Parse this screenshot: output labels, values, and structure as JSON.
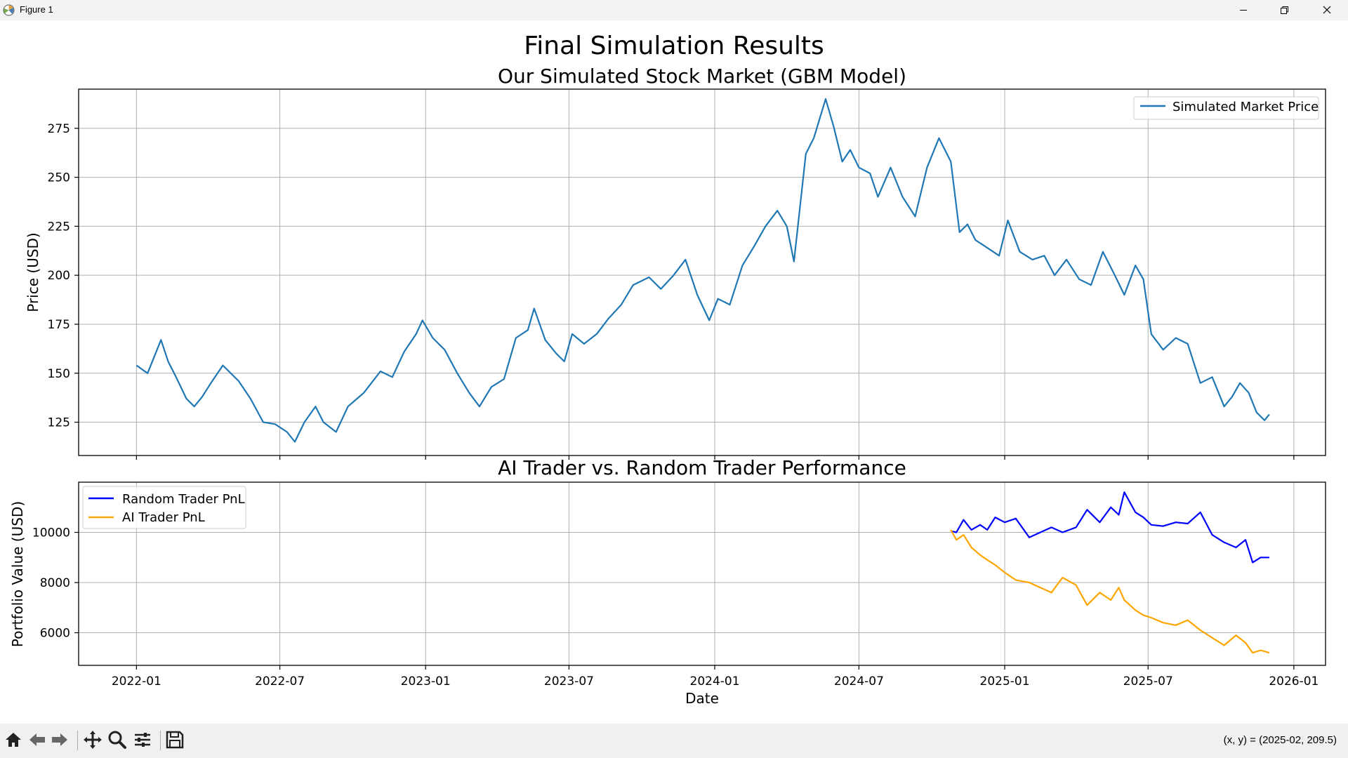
{
  "window": {
    "title": "Figure 1"
  },
  "figure": {
    "suptitle": "Final Simulation Results"
  },
  "toolbar": {
    "tools": [
      "home-icon",
      "back-icon",
      "forward-icon",
      "pan-icon",
      "zoom-icon",
      "configure-subplots-icon",
      "save-icon"
    ],
    "coord_readout": "(x, y) = (2025-02, 209.5)"
  },
  "colors": {
    "price": "#1f77b4",
    "random": "#0000ff",
    "ai": "#ffa500",
    "grid": "#b0b0b0"
  },
  "chart_data": [
    {
      "type": "line",
      "title": "Our Simulated Stock Market (GBM Model)",
      "xlabel": "",
      "ylabel": "Price (USD)",
      "xlim": [
        "2021-10-20",
        "2026-02-10"
      ],
      "ylim": [
        108,
        295
      ],
      "yticks": [
        125,
        150,
        175,
        200,
        225,
        250,
        275
      ],
      "xticks": [
        "2022-01",
        "2022-07",
        "2023-01",
        "2023-07",
        "2024-01",
        "2024-07",
        "2025-01",
        "2025-07",
        "2026-01"
      ],
      "xticklabels_visible": false,
      "grid": true,
      "legend_position": "upper right",
      "series": [
        {
          "name": "Simulated Market Price",
          "color": "#1f77b4",
          "x": [
            "2022-01-01",
            "2022-01-15",
            "2022-02-01",
            "2022-02-10",
            "2022-02-20",
            "2022-03-05",
            "2022-03-15",
            "2022-03-25",
            "2022-04-05",
            "2022-04-20",
            "2022-05-10",
            "2022-05-25",
            "2022-06-10",
            "2022-06-25",
            "2022-07-10",
            "2022-07-20",
            "2022-08-01",
            "2022-08-15",
            "2022-08-25",
            "2022-09-10",
            "2022-09-25",
            "2022-10-15",
            "2022-11-05",
            "2022-11-20",
            "2022-12-05",
            "2022-12-20",
            "2022-12-28",
            "2023-01-10",
            "2023-01-25",
            "2023-02-10",
            "2023-02-25",
            "2023-03-10",
            "2023-03-25",
            "2023-04-10",
            "2023-04-25",
            "2023-05-10",
            "2023-05-18",
            "2023-06-01",
            "2023-06-15",
            "2023-06-25",
            "2023-07-05",
            "2023-07-20",
            "2023-08-05",
            "2023-08-20",
            "2023-09-05",
            "2023-09-20",
            "2023-10-10",
            "2023-10-25",
            "2023-11-10",
            "2023-11-25",
            "2023-12-10",
            "2023-12-25",
            "2024-01-05",
            "2024-01-20",
            "2024-02-05",
            "2024-02-20",
            "2024-03-05",
            "2024-03-20",
            "2024-04-01",
            "2024-04-10",
            "2024-04-25",
            "2024-05-05",
            "2024-05-20",
            "2024-05-30",
            "2024-06-10",
            "2024-06-20",
            "2024-07-01",
            "2024-07-15",
            "2024-07-25",
            "2024-08-10",
            "2024-08-25",
            "2024-09-10",
            "2024-09-25",
            "2024-10-10",
            "2024-10-25",
            "2024-11-05",
            "2024-11-15",
            "2024-11-25",
            "2024-12-10",
            "2024-12-25",
            "2025-01-05",
            "2025-01-20",
            "2025-02-05",
            "2025-02-20",
            "2025-03-05",
            "2025-03-20",
            "2025-04-05",
            "2025-04-20",
            "2025-05-05",
            "2025-05-20",
            "2025-06-01",
            "2025-06-15",
            "2025-06-25",
            "2025-07-05",
            "2025-07-20",
            "2025-08-05",
            "2025-08-20",
            "2025-09-05",
            "2025-09-20",
            "2025-10-05",
            "2025-10-15",
            "2025-10-25",
            "2025-11-05",
            "2025-11-15",
            "2025-11-25",
            "2025-12-01"
          ],
          "values": [
            154,
            150,
            167,
            156,
            148,
            137,
            133,
            138,
            145,
            154,
            146,
            137,
            125,
            124,
            120,
            115,
            125,
            133,
            125,
            120,
            133,
            140,
            151,
            148,
            161,
            170,
            177,
            168,
            162,
            150,
            140,
            133,
            143,
            147,
            168,
            172,
            183,
            167,
            160,
            156,
            170,
            165,
            170,
            178,
            185,
            195,
            199,
            193,
            200,
            208,
            190,
            177,
            188,
            185,
            205,
            215,
            225,
            233,
            225,
            207,
            262,
            270,
            290,
            276,
            258,
            264,
            255,
            252,
            240,
            255,
            240,
            230,
            255,
            270,
            258,
            222,
            226,
            218,
            214,
            210,
            228,
            212,
            208,
            210,
            200,
            208,
            198,
            195,
            212,
            200,
            190,
            205,
            198,
            170,
            162,
            168,
            165,
            145,
            148,
            133,
            138,
            145,
            140,
            130,
            126,
            129
          ]
        }
      ]
    },
    {
      "type": "line",
      "title": "AI Trader vs. Random Trader Performance",
      "xlabel": "Date",
      "ylabel": "Portfolio Value (USD)",
      "xlim": [
        "2021-10-20",
        "2026-02-10"
      ],
      "ylim": [
        4700,
        12000
      ],
      "yticks": [
        6000,
        8000,
        10000
      ],
      "xticks": [
        "2022-01",
        "2022-07",
        "2023-01",
        "2023-07",
        "2024-01",
        "2024-07",
        "2025-01",
        "2025-07",
        "2026-01"
      ],
      "grid": true,
      "legend_position": "upper left",
      "series": [
        {
          "name": "Random Trader PnL",
          "color": "#0000ff",
          "x": [
            "2024-10-25",
            "2024-11-01",
            "2024-11-10",
            "2024-11-20",
            "2024-12-01",
            "2024-12-10",
            "2024-12-20",
            "2025-01-01",
            "2025-01-15",
            "2025-02-01",
            "2025-02-15",
            "2025-03-01",
            "2025-03-15",
            "2025-04-01",
            "2025-04-15",
            "2025-05-01",
            "2025-05-15",
            "2025-05-25",
            "2025-06-01",
            "2025-06-15",
            "2025-06-25",
            "2025-07-05",
            "2025-07-20",
            "2025-08-05",
            "2025-08-20",
            "2025-09-05",
            "2025-09-20",
            "2025-10-05",
            "2025-10-20",
            "2025-11-01",
            "2025-11-10",
            "2025-11-20",
            "2025-12-01"
          ],
          "values": [
            10050,
            10000,
            10500,
            10100,
            10300,
            10100,
            10600,
            10400,
            10550,
            9800,
            10000,
            10200,
            10000,
            10200,
            10900,
            10400,
            11000,
            10700,
            11600,
            10800,
            10600,
            10300,
            10250,
            10400,
            10350,
            10800,
            9900,
            9600,
            9400,
            9700,
            8800,
            9000,
            9000
          ]
        },
        {
          "name": "AI Trader PnL",
          "color": "#ffa500",
          "x": [
            "2024-10-25",
            "2024-11-01",
            "2024-11-10",
            "2024-11-20",
            "2024-12-01",
            "2024-12-10",
            "2024-12-20",
            "2025-01-01",
            "2025-01-15",
            "2025-02-01",
            "2025-02-15",
            "2025-03-01",
            "2025-03-15",
            "2025-04-01",
            "2025-04-15",
            "2025-05-01",
            "2025-05-15",
            "2025-05-25",
            "2025-06-01",
            "2025-06-15",
            "2025-06-25",
            "2025-07-05",
            "2025-07-20",
            "2025-08-05",
            "2025-08-20",
            "2025-09-05",
            "2025-09-20",
            "2025-10-05",
            "2025-10-20",
            "2025-11-01",
            "2025-11-10",
            "2025-11-20",
            "2025-12-01"
          ],
          "values": [
            10100,
            9700,
            9900,
            9400,
            9100,
            8900,
            8700,
            8400,
            8100,
            8000,
            7800,
            7600,
            8200,
            7900,
            7100,
            7600,
            7300,
            7800,
            7300,
            6900,
            6700,
            6600,
            6400,
            6300,
            6500,
            6100,
            5800,
            5500,
            5900,
            5600,
            5200,
            5300,
            5200
          ]
        }
      ]
    }
  ]
}
